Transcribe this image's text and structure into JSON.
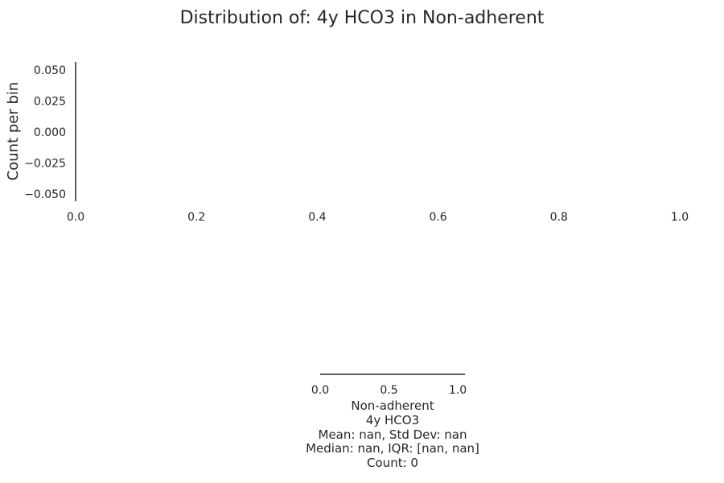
{
  "chart_data": [
    {
      "type": "bar",
      "title": "Distribution of: 4y HCO3 in Non-adherent",
      "xlabel": "",
      "ylabel": "Count per bin",
      "xlim": [
        0.0,
        1.0
      ],
      "ylim": [
        -0.055,
        0.055
      ],
      "x_ticks": [
        "0.0",
        "0.2",
        "0.4",
        "0.6",
        "0.8",
        "1.0"
      ],
      "y_ticks": [
        "0.050",
        "0.025",
        "0.000",
        "−0.025",
        "−0.050"
      ],
      "series": [],
      "grid": false
    },
    {
      "type": "bar",
      "xlabel": "",
      "ylabel": "",
      "xlim": [
        0.0,
        1.0
      ],
      "x_ticks": [
        "0.0",
        "0.5",
        "1.0"
      ],
      "series": [],
      "grid": false
    }
  ],
  "summary": {
    "group": "Non-adherent",
    "variable": "4y HCO3",
    "mean_sd": "Mean: nan, Std Dev: nan",
    "median_iqr": "Median: nan, IQR: [nan, nan]",
    "count": "Count: 0"
  }
}
